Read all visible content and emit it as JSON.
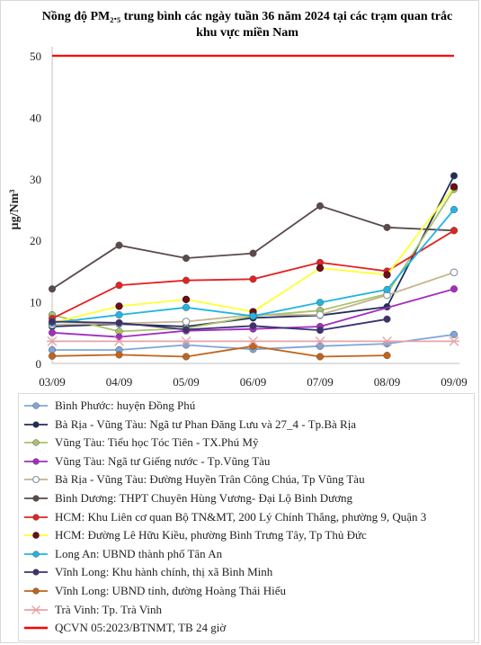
{
  "chart_data": {
    "type": "line",
    "title": "Nồng độ PM₂.₅ trung bình các ngày tuần 36 năm 2024 tại các trạm quan trắc khu vực miền Nam",
    "ylabel": "µg/Nm³",
    "xlabel": "",
    "categories": [
      "03/09",
      "04/09",
      "05/09",
      "06/09",
      "07/09",
      "08/09",
      "09/09"
    ],
    "ylim": [
      0,
      50
    ],
    "yticks": [
      0,
      10,
      20,
      30,
      40,
      50
    ],
    "grid": false,
    "legend_position": "bottom",
    "series": [
      {
        "name": "Bình Phước: huyện Đồng Phú",
        "color": "#7ea6d8",
        "marker": "circle",
        "values": [
          2.2,
          2.2,
          3.0,
          2.3,
          2.8,
          3.2,
          4.7
        ]
      },
      {
        "name": "Bà Rịa - Vũng Tàu: Ngã tư Phan Đăng Lưu và 27_4 - Tp.Bà Rịa",
        "color": "#1f2d5a",
        "marker": "circle",
        "values": [
          6.0,
          6.4,
          6.0,
          7.4,
          7.8,
          9.2,
          30.5
        ]
      },
      {
        "name": "Vũng Tàu: Tiểu học Tóc Tiên - TX.Phú Mỹ",
        "color": "#a9c26a",
        "marker": "circle",
        "values": [
          7.9,
          5.2,
          5.7,
          7.7,
          8.6,
          11.3,
          28.3
        ]
      },
      {
        "name": "Vũng Tàu: Ngã tư Giếng nước - Tp.Vũng Tàu",
        "color": "#a22dbf",
        "marker": "circle",
        "values": [
          5.0,
          4.3,
          5.3,
          5.6,
          6.0,
          null,
          12.1
        ]
      },
      {
        "name": "Bà Rịa - Vũng Tàu: Đường Huyền Trân Công Chúa, Tp Vũng Tàu",
        "color": "#c4b38f",
        "marker": "circle-open",
        "values": [
          6.3,
          6.5,
          6.8,
          7.9,
          7.9,
          11.1,
          14.8
        ]
      },
      {
        "name": "Bình Dương: THPT Chuyên Hùng Vương- Đại Lộ Bình Dương",
        "color": "#5a4a4a",
        "marker": "circle",
        "values": [
          12.1,
          19.2,
          17.1,
          17.9,
          25.6,
          22.1,
          21.6
        ]
      },
      {
        "name": "HCM: Khu Liên cơ quan Bộ TN&MT, 200 Lý Chính Thắng, phường 9, Quận 3",
        "color": "#e32222",
        "marker": "circle",
        "values": [
          7.3,
          12.7,
          13.5,
          13.7,
          16.4,
          15.0,
          21.6
        ]
      },
      {
        "name": "HCM: Đường Lê Hữu Kiều, phường Bình Trưng Tây, Tp Thủ Đức",
        "color": "#ffff33",
        "marker": "circle-dark",
        "values": [
          6.6,
          9.3,
          10.4,
          8.4,
          15.5,
          14.4,
          28.7
        ]
      },
      {
        "name": "Long An: UBND thành phố Tân An",
        "color": "#21b5e3",
        "marker": "circle",
        "values": [
          6.6,
          7.9,
          9.1,
          7.7,
          9.9,
          12.0,
          25.0
        ]
      },
      {
        "name": "Vĩnh Long: Khu hành chính, thị xã Bình Minh",
        "color": "#3d3170",
        "marker": "circle",
        "values": [
          6.8,
          6.6,
          5.5,
          6.1,
          5.4,
          7.2,
          null
        ]
      },
      {
        "name": "Vĩnh Long: UBND tỉnh, đường Hoàng Thái Hiếu",
        "color": "#c2631a",
        "marker": "circle",
        "values": [
          1.2,
          1.4,
          1.1,
          2.8,
          1.1,
          1.3,
          null
        ]
      },
      {
        "name": "Trà Vinh: Tp. Trà Vinh",
        "color": "#e8a3a8",
        "marker": "star",
        "values": [
          3.6,
          3.6,
          3.6,
          3.6,
          3.6,
          3.6,
          3.6
        ]
      },
      {
        "name": "QCVN 05:2023/BTNMT, TB 24 giờ",
        "color": "#ff0000",
        "marker": "none",
        "values": [
          50,
          50,
          50,
          50,
          50,
          50,
          50
        ]
      }
    ]
  }
}
